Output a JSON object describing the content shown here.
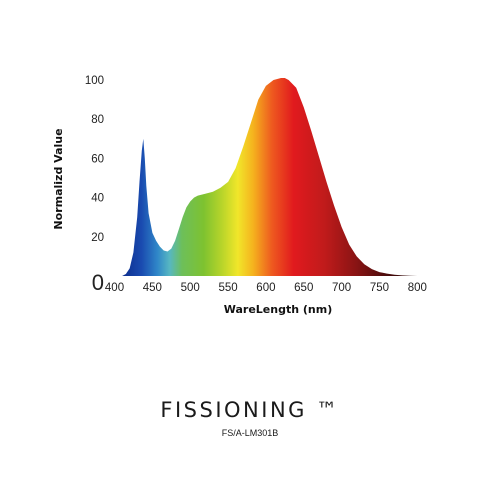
{
  "chart_data": {
    "type": "area",
    "title": "",
    "xlabel": "WareLength (nm)",
    "ylabel": "Normalizd Value",
    "xlim": [
      398,
      830
    ],
    "ylim": [
      0,
      100
    ],
    "x_ticks": [
      "400",
      "450",
      "500",
      "550",
      "600",
      "650",
      "700",
      "750",
      "800"
    ],
    "y_ticks": [
      "0",
      "20",
      "40",
      "60",
      "80",
      "100"
    ],
    "grid": false,
    "legend": "none",
    "series": [
      {
        "x": [
          410,
          415,
          420,
          425,
          430,
          433,
          436,
          438,
          440,
          442,
          445,
          450,
          455,
          460,
          465,
          470,
          475,
          480,
          485,
          490,
          495,
          500,
          505,
          510,
          520,
          530,
          540,
          550,
          560,
          570,
          580,
          590,
          600,
          610,
          620,
          625,
          630,
          640,
          650,
          660,
          670,
          680,
          690,
          700,
          710,
          720,
          730,
          740,
          750,
          760,
          770,
          780,
          790,
          800,
          810
        ],
        "y": [
          0,
          1,
          4,
          12,
          30,
          48,
          64,
          70,
          60,
          46,
          32,
          22,
          18,
          15,
          13,
          12.5,
          14,
          18,
          24,
          30,
          35,
          38,
          40,
          41,
          42,
          43,
          45,
          48,
          55,
          66,
          78,
          90,
          97,
          100,
          101,
          101,
          100,
          96,
          86,
          74,
          61,
          48,
          36,
          25,
          16,
          10,
          6,
          3.5,
          2,
          1.2,
          0.6,
          0.3,
          0.1,
          0,
          0
        ]
      }
    ]
  },
  "brand": {
    "name": "FISSIONING ™",
    "model": "FS/A-LM301B"
  }
}
